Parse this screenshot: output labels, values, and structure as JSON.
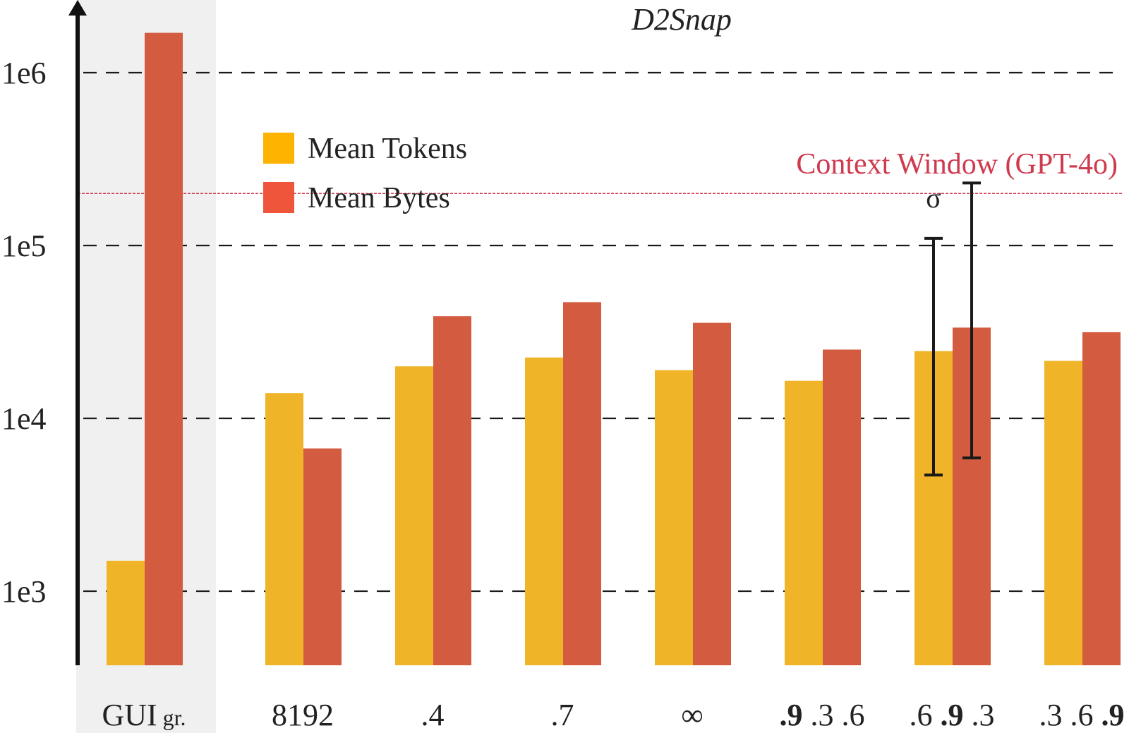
{
  "chart_data": {
    "type": "bar",
    "title": "D2Snap",
    "y_scale": "log",
    "ylim": [
      300,
      2000000
    ],
    "yticks": [
      {
        "value": 1000,
        "label": "1e3"
      },
      {
        "value": 10000,
        "label": "1e4"
      },
      {
        "value": 100000,
        "label": "1e5"
      },
      {
        "value": 1000000,
        "label": "1e6"
      }
    ],
    "grid": "dashed horizontal at major ticks",
    "legend": {
      "placement": "upper-left",
      "entries": [
        {
          "label": "Mean Tokens",
          "color": "#fdb300"
        },
        {
          "label": "Mean Bytes",
          "color": "#ee553b"
        }
      ]
    },
    "categories": [
      {
        "parts": [
          {
            "text": "GUI",
            "bold": false,
            "small": false
          },
          {
            "text": " gr.",
            "bold": false,
            "small": true
          }
        ],
        "highlighted": true
      },
      {
        "parts": [
          {
            "text": "8192",
            "bold": false,
            "small": false
          }
        ]
      },
      {
        "parts": [
          {
            "text": ".4",
            "bold": false,
            "small": false
          }
        ]
      },
      {
        "parts": [
          {
            "text": ".7",
            "bold": false,
            "small": false
          }
        ]
      },
      {
        "parts": [
          {
            "text": "∞",
            "bold": false,
            "small": false
          }
        ]
      },
      {
        "parts": [
          {
            "text": ".9",
            "bold": true,
            "small": false
          },
          {
            "text": " .3 .6",
            "bold": false,
            "small": false
          }
        ]
      },
      {
        "parts": [
          {
            "text": ".6 ",
            "bold": false,
            "small": false
          },
          {
            "text": ".9",
            "bold": true,
            "small": false
          },
          {
            "text": " .3",
            "bold": false,
            "small": false
          }
        ]
      },
      {
        "parts": [
          {
            "text": ".3 .6 ",
            "bold": false,
            "small": false
          },
          {
            "text": ".9",
            "bold": true,
            "small": false
          }
        ]
      }
    ],
    "series": [
      {
        "name": "Mean Tokens",
        "color": "#f0b429",
        "values": [
          1500,
          14000,
          20000,
          22500,
          19000,
          16500,
          24500,
          21500
        ]
      },
      {
        "name": "Mean Bytes",
        "color": "#d35b40",
        "values": [
          1700000,
          6700,
          39000,
          47000,
          35700,
          25000,
          33500,
          31500
        ]
      }
    ],
    "error_bars": [
      {
        "category_index": 6,
        "series": "Mean Tokens",
        "low": 4700,
        "high": 110000
      },
      {
        "category_index": 6,
        "series": "Mean Bytes",
        "low": 5900,
        "high": 230000
      }
    ],
    "error_label": "σ",
    "reference_line": {
      "value": 200000,
      "label": "Context Window (GPT-4o)",
      "color": "#cf3a4f"
    }
  }
}
